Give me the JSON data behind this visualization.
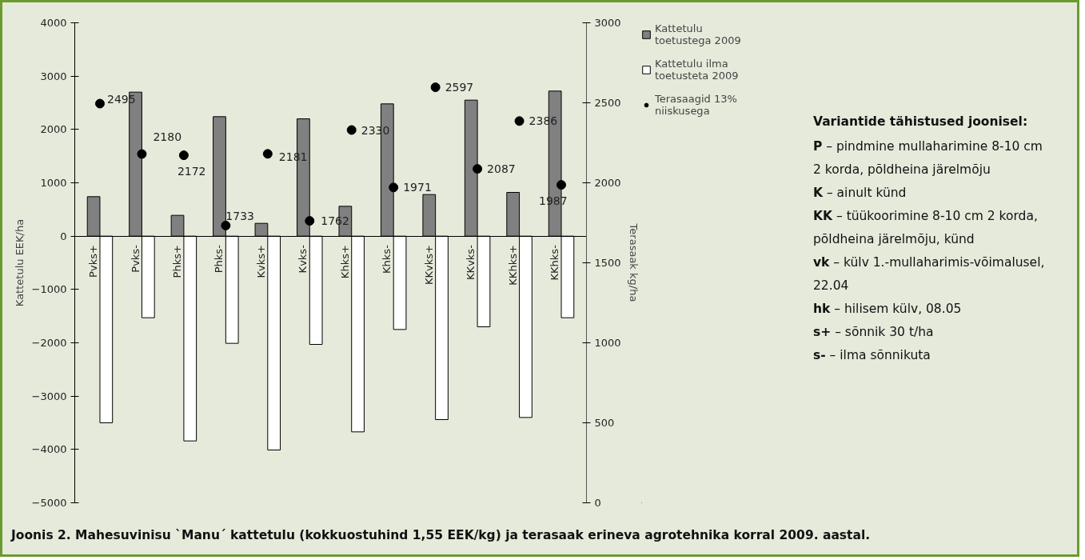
{
  "chart_data": {
    "type": "bar",
    "title": "Joonis 2. Mahesuvinisu `Manu´ kattetulu (kokkuostuhind 1,55 EEK/kg) ja terasaak erineva agrotehnika korral 2009. aastal.",
    "ylabel": "Kattetulu EEK/ha",
    "y2label": "Terasaak kg/ha",
    "categories": [
      "Pvks+",
      "Pvks-",
      "Phks+",
      "Phks-",
      "Kvks+",
      "Kvks-",
      "Khks+",
      "Khks-",
      "KKvks+",
      "KKvks-",
      "KKhks+",
      "KKhks-"
    ],
    "series": [
      {
        "name": "Kattetulu toetustega 2009",
        "color": "#808080",
        "values": [
          740,
          2700,
          390,
          2240,
          240,
          2200,
          560,
          2480,
          780,
          2550,
          820,
          2720
        ]
      },
      {
        "name": "Kattetulu ilma toetusteta 2009",
        "color": "#ffffff",
        "values": [
          -3500,
          -1530,
          -3840,
          -2010,
          -4010,
          -2030,
          -3670,
          -1750,
          -3440,
          -1700,
          -3400,
          -1530
        ]
      },
      {
        "name": "Terasaagid 13% niiskusega",
        "type": "scatter",
        "axis": "y2",
        "color": "#000000",
        "values": [
          2495,
          2180,
          2172,
          1733,
          2181,
          1762,
          2330,
          1971,
          2597,
          2087,
          2386,
          1987
        ],
        "value_labels": [
          "2495",
          "2180",
          "2172",
          "1733",
          "2181",
          "1762",
          "2330",
          "1971",
          "2597",
          "2087",
          "2386",
          "1987"
        ]
      }
    ],
    "ylim": [
      -5000,
      4000
    ],
    "yticks": [
      -5000,
      -4000,
      -3000,
      -2000,
      -1000,
      0,
      1000,
      2000,
      3000,
      4000
    ],
    "y2lim": [
      0,
      3000
    ],
    "y2ticks": [
      0,
      500,
      1000,
      1500,
      2000,
      2500,
      3000
    ],
    "marker": "circle",
    "grid": false,
    "legend": "top right",
    "annotations": [
      "Variantide tähistused joonisel:",
      "P – pindmine mullaharimine 8-10 cm 2 korda, põldheina järelmõju",
      "K – ainult künd",
      "KK – tüükoorimine 8-10 cm 2 korda, põldheina järelmõju, künd",
      "vk – külv 1.-mullaharimis-võimalusel, 22.04",
      "hk – hilisem külv, 08.05",
      "s+ – sõnnik 30 t/ha",
      "s- – ilma sõnnikuta"
    ]
  }
}
